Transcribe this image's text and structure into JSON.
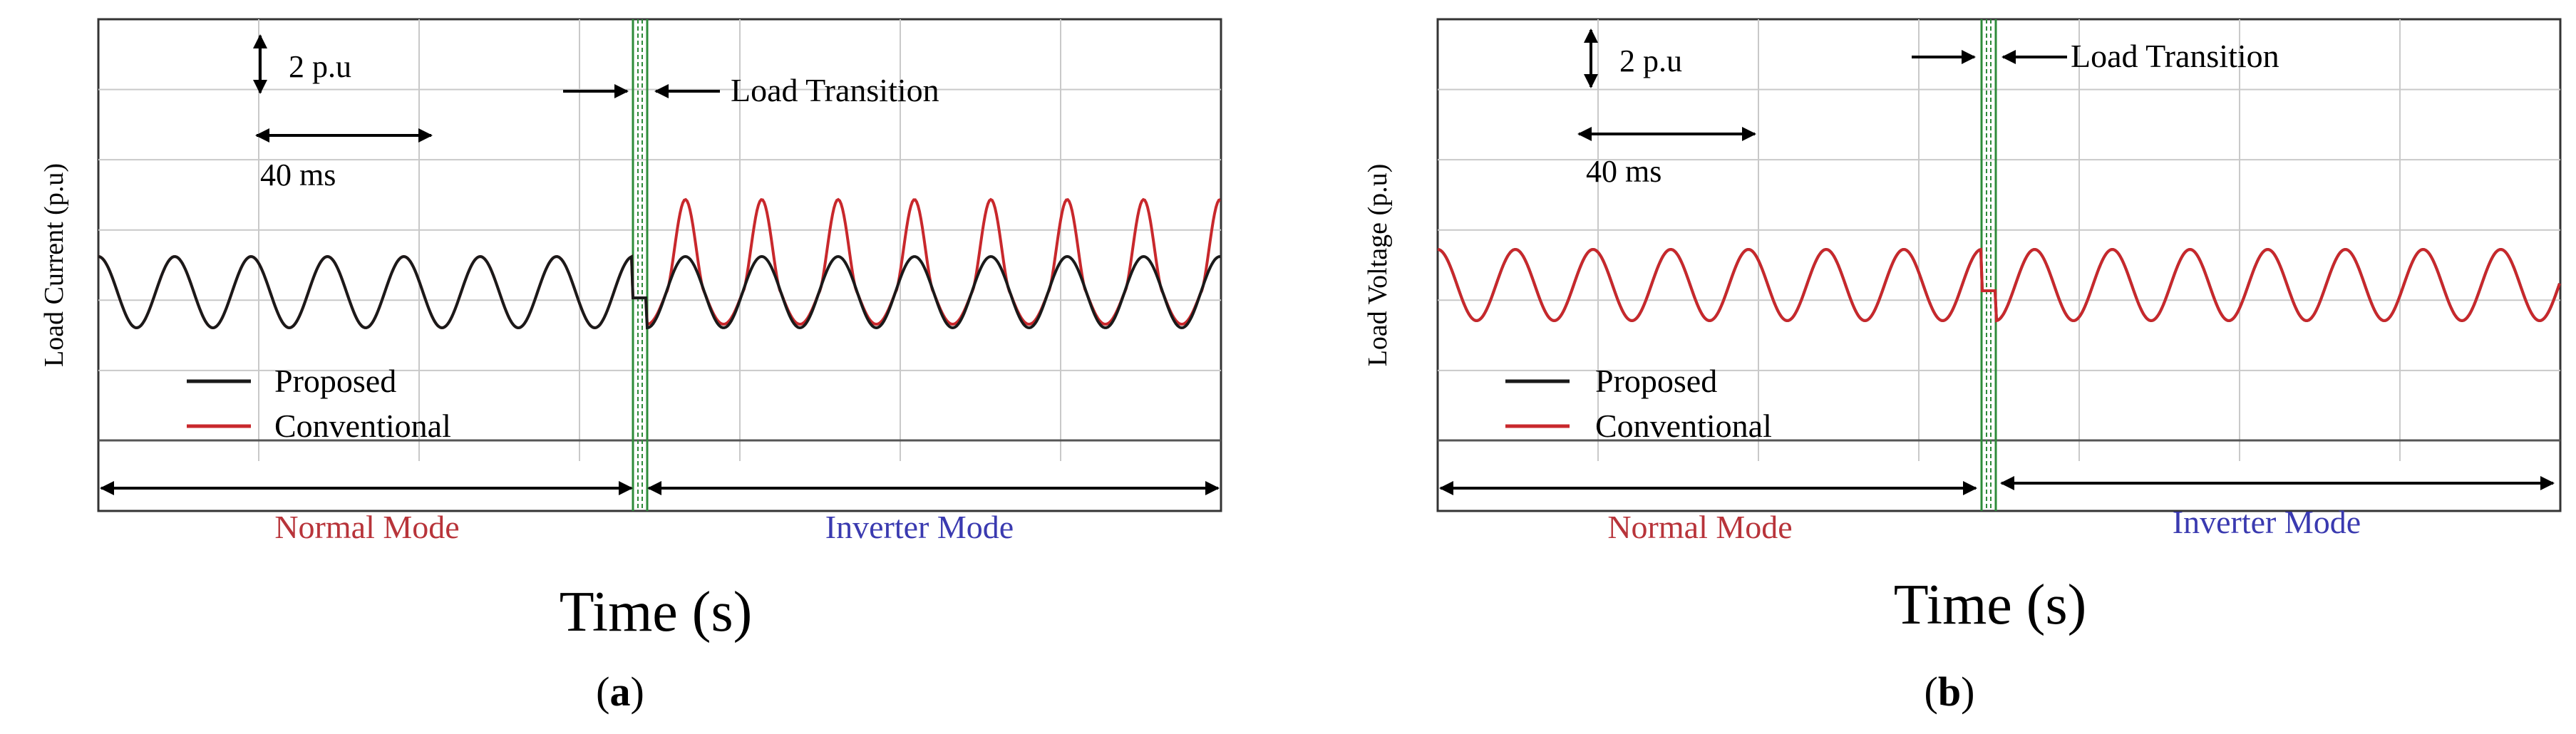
{
  "figure": {
    "panels": [
      {
        "id": "a",
        "caption": "(a)",
        "caption_letter": "a",
        "ylabel": "Load Current (p.u)",
        "xlabel": "Time (s)",
        "scale_voltage": "2 p.u",
        "scale_time": "40 ms",
        "transition_label": "Load Transition",
        "mode_left": "Normal Mode",
        "mode_right": "Inverter Mode",
        "legend": [
          {
            "label": "Proposed",
            "color": "#1a1a1a"
          },
          {
            "label": "Conventional",
            "color": "#c8282c"
          }
        ]
      },
      {
        "id": "b",
        "caption": "(b)",
        "caption_letter": "b",
        "ylabel": "Load Voltage (p.u)",
        "xlabel": "Time (s)",
        "scale_voltage": "2 p.u",
        "scale_time": "40 ms",
        "transition_label": "Load Transition",
        "mode_left": "Normal Mode",
        "mode_right": "Inverter Mode",
        "legend": [
          {
            "label": "Proposed",
            "color": "#1a1a1a"
          },
          {
            "label": "Conventional",
            "color": "#c8282c"
          }
        ]
      }
    ]
  },
  "colors": {
    "grid": "#c9c9c9",
    "transition_marker": "#2e8b3a",
    "normal_mode_text": "#b8343a",
    "inverter_mode_text": "#3a3ab0",
    "proposed": "#1a1a1a",
    "conventional": "#c8282c"
  },
  "chart_data": [
    {
      "type": "line",
      "panel": "a",
      "ylabel": "Load Current (p.u)",
      "xlabel": "Time (s)",
      "ms_per_cycle": 20,
      "cycles_before_transition": 7,
      "cycles_after_transition": 7.5,
      "series": [
        {
          "name": "Proposed",
          "color": "#1a1a1a",
          "amplitude_pu_before": 1.0,
          "amplitude_pu_after": 1.0
        },
        {
          "name": "Conventional",
          "color": "#c8282c",
          "amplitude_pu_before": 1.0,
          "amplitude_pu_after_peak": 2.6,
          "amplitude_pu_after_trough": 0.9
        }
      ]
    },
    {
      "type": "line",
      "panel": "b",
      "ylabel": "Load Voltage (p.u)",
      "xlabel": "Time (s)",
      "ms_per_cycle": 20,
      "cycles_before_transition": 7,
      "cycles_after_transition": 7.5,
      "series": [
        {
          "name": "Proposed",
          "color": "#1a1a1a",
          "amplitude_pu_before": 1.0,
          "amplitude_pu_after": 1.0
        },
        {
          "name": "Conventional",
          "color": "#c8282c",
          "amplitude_pu_before": 1.0,
          "amplitude_pu_after": 1.0
        }
      ]
    }
  ]
}
